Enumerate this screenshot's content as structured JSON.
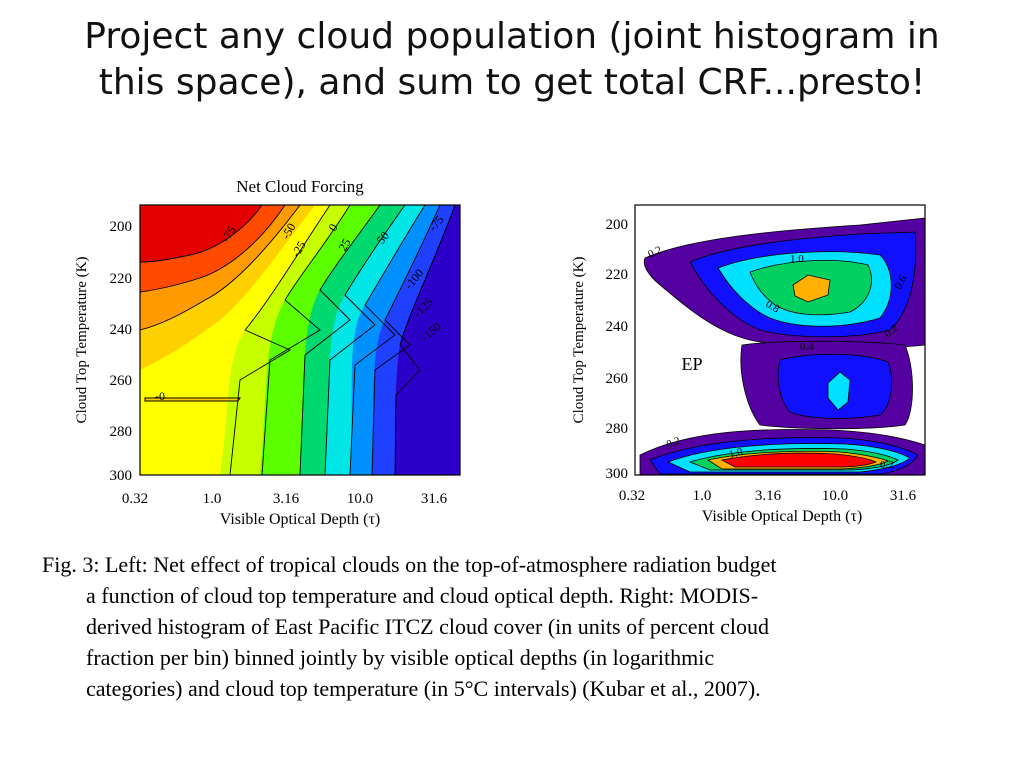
{
  "slide": {
    "title_line1": "Project any cloud population (joint histogram in",
    "title_line2": "this space), and sum to get total CRF...presto!"
  },
  "caption": {
    "line1": "Fig. 3: Left: Net effect of tropical clouds on the top-of-atmosphere radiation budget",
    "line2": "a function of cloud top temperature and cloud optical depth. Right:  MODIS-",
    "line3": "derived histogram of East Pacific ITCZ cloud cover (in units of percent cloud",
    "line4": "fraction per bin) binned jointly by visible optical depths (in logarithmic",
    "line5": "categories) and cloud top temperature (in 5°C intervals) (Kubar et al., 2007)."
  },
  "chart_data": [
    {
      "type": "heatmap",
      "title": "Net Cloud Forcing",
      "xlabel": "Visible Optical Depth (τ)",
      "ylabel": "Cloud Top Temperature (K)",
      "x_ticks": [
        "0.32",
        "1.0",
        "3.16",
        "10.0",
        "31.6"
      ],
      "y_ticks": [
        "200",
        "220",
        "240",
        "260",
        "280",
        "300"
      ],
      "xlim": [
        0.32,
        50
      ],
      "ylim": [
        300,
        192
      ],
      "x_scale": "log",
      "contour_labels": [
        "-75",
        "-50",
        "-25",
        "0",
        "25",
        "50",
        "-25",
        "-50",
        "-75",
        "-100",
        "-125",
        "-150",
        "-0"
      ],
      "colormap": [
        "#e50000",
        "#ff4a00",
        "#ff9a00",
        "#ffd000",
        "#ffff00",
        "#c8ff00",
        "#5cff00",
        "#00d870",
        "#00e6e6",
        "#0090ff",
        "#2040ff",
        "#2c00c8"
      ]
    },
    {
      "type": "heatmap",
      "title": "",
      "region_label": "EP",
      "xlabel": "Visible Optical Depth (τ)",
      "ylabel": "Cloud Top Temperature (K)",
      "x_ticks": [
        "0.32",
        "1.0",
        "3.16",
        "10.0",
        "31.6"
      ],
      "y_ticks": [
        "200",
        "220",
        "240",
        "260",
        "280",
        "300"
      ],
      "xlim": [
        0.32,
        50
      ],
      "ylim": [
        300,
        195
      ],
      "x_scale": "log",
      "contour_labels": [
        "0.2",
        "1.0",
        "0.8",
        "0.6",
        "0.4",
        "0.2",
        "0.2",
        "1.0",
        "0.8",
        "0.6",
        "0.4",
        "0.2"
      ],
      "colormap": [
        "#5500a0",
        "#1010ff",
        "#00e0ff",
        "#00d060",
        "#ffb000",
        "#ff0000"
      ]
    }
  ]
}
